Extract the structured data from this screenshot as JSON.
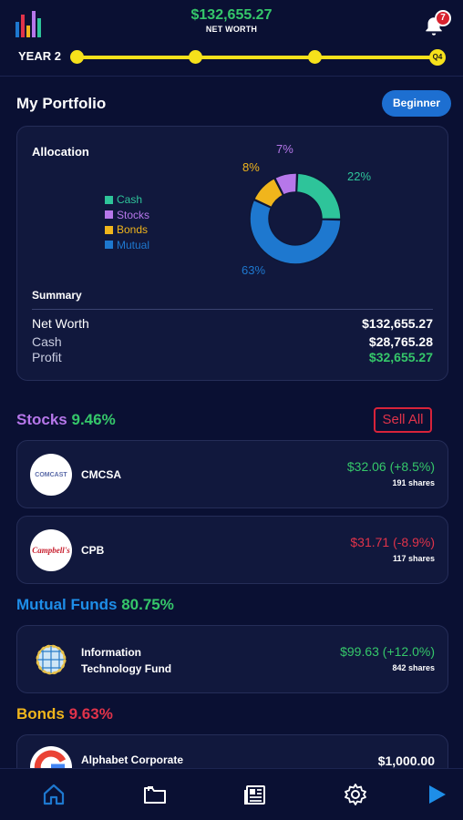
{
  "header": {
    "net_worth_value": "$132,655.27",
    "net_worth_label": "NET WORTH",
    "notification_count": "7",
    "year_label": "YEAR 2",
    "quarter_label": "Q4"
  },
  "portfolio": {
    "title": "My Portfolio",
    "level_button": "Beginner",
    "allocation": {
      "title": "Allocation",
      "legend": [
        {
          "label": "Cash",
          "color": "#2ec49a"
        },
        {
          "label": "Stocks",
          "color": "#b677ea"
        },
        {
          "label": "Bonds",
          "color": "#f0b51c"
        },
        {
          "label": "Mutual",
          "color": "#1e78cf"
        }
      ],
      "percent_labels": {
        "cash": "22%",
        "stocks": "7%",
        "bonds": "8%",
        "mutual": "63%"
      }
    },
    "summary": {
      "title": "Summary",
      "rows": [
        {
          "label": "Net Worth",
          "value": "$132,655.27"
        },
        {
          "label": "Cash",
          "value": "$28,765.28"
        },
        {
          "label": "Profit",
          "value": "$32,655.27"
        }
      ]
    }
  },
  "stocks": {
    "title": "Stocks",
    "percent": "9.46%",
    "sell_all": "Sell All",
    "items": [
      {
        "name": "CMCSA",
        "logo_text": "COMCAST",
        "price": "$32.06 (+8.5%)",
        "shares": "191 shares",
        "color": "#35c76a"
      },
      {
        "name": "CPB",
        "logo_text": "Campbell's",
        "price": "$31.71 (-8.9%)",
        "shares": "117 shares",
        "color": "#e0334a"
      }
    ]
  },
  "mutual_funds": {
    "title": "Mutual Funds",
    "percent": "80.75%",
    "items": [
      {
        "name_line1": "Information",
        "name_line2": "Technology Fund",
        "price": "$99.63 (+12.0%)",
        "shares": "842 shares"
      }
    ]
  },
  "bonds": {
    "title": "Bonds",
    "percent": "9.63%",
    "items": [
      {
        "name": "Alphabet Corporate",
        "price": "$1,000.00"
      }
    ]
  },
  "nav": [
    "home-icon",
    "folder-icon",
    "news-icon",
    "gear-icon",
    "play-icon"
  ]
}
